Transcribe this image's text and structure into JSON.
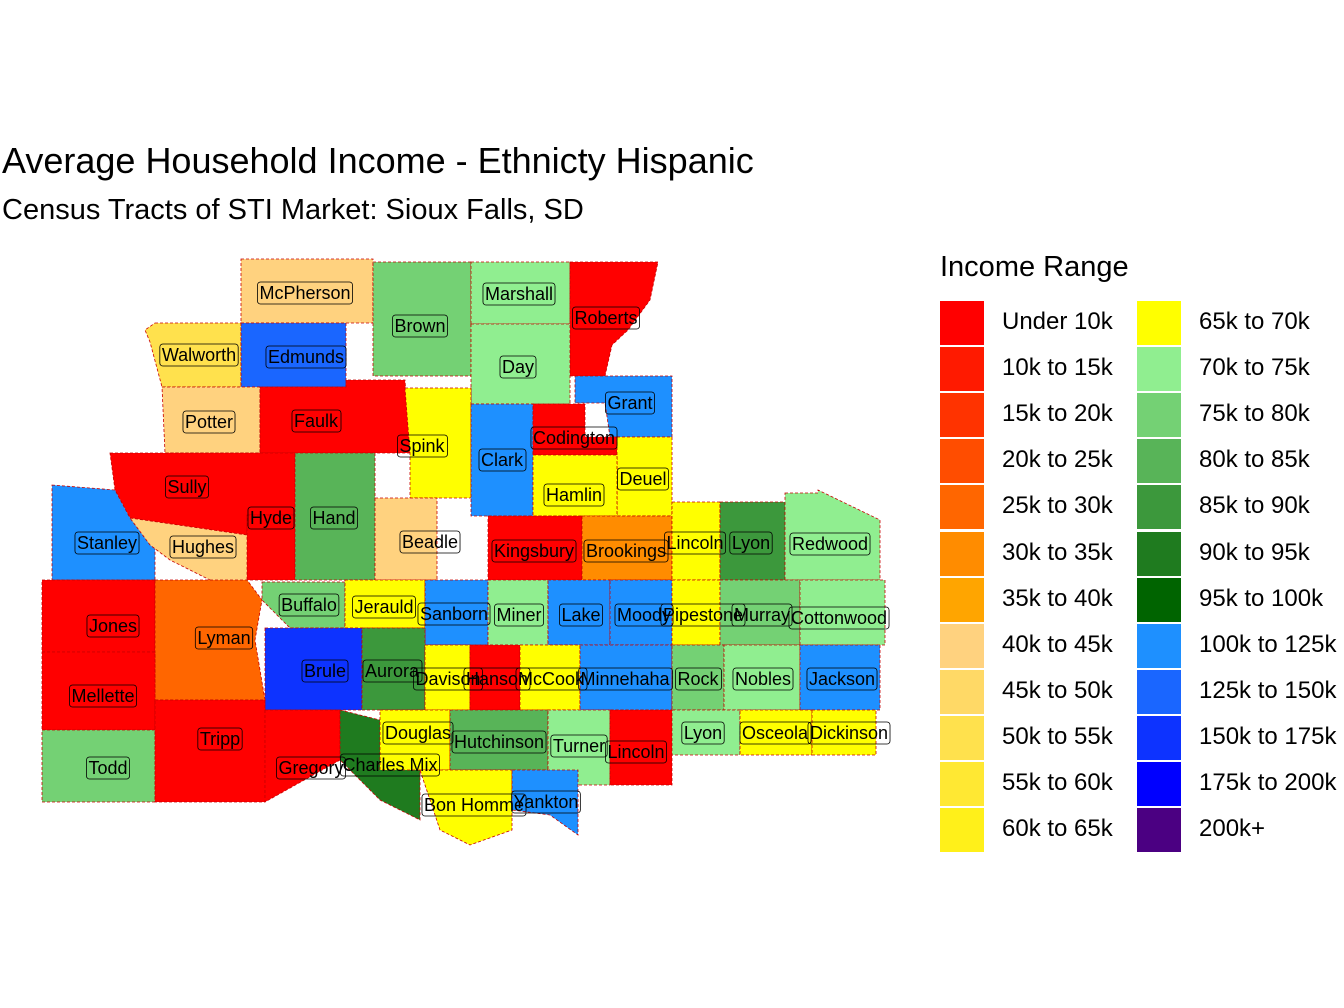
{
  "title": "Average Household Income - Ethnicty Hispanic",
  "subtitle": "Census Tracts of STI Market: Sioux Falls, SD",
  "legend": {
    "title": "Income Range",
    "items": [
      {
        "label": "Under 10k",
        "color": "#FF0000"
      },
      {
        "label": "10k to 15k",
        "color": "#FF1A00"
      },
      {
        "label": "15k to 20k",
        "color": "#FF3300"
      },
      {
        "label": "20k to 25k",
        "color": "#FF4D00"
      },
      {
        "label": "25k to 30k",
        "color": "#FF6600"
      },
      {
        "label": "30k to 35k",
        "color": "#FF8C00"
      },
      {
        "label": "35k to 40k",
        "color": "#FFA500"
      },
      {
        "label": "40k to 45k",
        "color": "#FFD27F"
      },
      {
        "label": "45k to 50k",
        "color": "#FFD966"
      },
      {
        "label": "50k to 55k",
        "color": "#FFE14D"
      },
      {
        "label": "55k to 60k",
        "color": "#FFE833"
      },
      {
        "label": "60k to 65k",
        "color": "#FFF01A"
      },
      {
        "label": "65k to 70k",
        "color": "#FFFF00"
      },
      {
        "label": "70k to 75k",
        "color": "#90EE90"
      },
      {
        "label": "75k to 80k",
        "color": "#74D174"
      },
      {
        "label": "80k to 85k",
        "color": "#58B458"
      },
      {
        "label": "85k to 90k",
        "color": "#3C983C"
      },
      {
        "label": "90k to 95k",
        "color": "#1F7B1F"
      },
      {
        "label": "95k to 100k",
        "color": "#006400"
      },
      {
        "label": "100k to 125k",
        "color": "#1E90FF"
      },
      {
        "label": "125k to 150k",
        "color": "#1A66FF"
      },
      {
        "label": "150k to 175k",
        "color": "#0D33FF"
      },
      {
        "label": "175k to 200k",
        "color": "#0000FF"
      },
      {
        "label": "200k+",
        "color": "#4B0082"
      }
    ]
  },
  "counties": [
    {
      "name": "McPherson",
      "income": "40k to 45k",
      "color": "#FFD27F"
    },
    {
      "name": "Brown",
      "income": "75k to 80k",
      "color": "#74D174"
    },
    {
      "name": "Marshall",
      "income": "70k to 75k",
      "color": "#90EE90"
    },
    {
      "name": "Roberts",
      "income": "Under 10k",
      "color": "#FF0000"
    },
    {
      "name": "Walworth",
      "income": "50k to 55k",
      "color": "#FFE14D"
    },
    {
      "name": "Edmunds",
      "income": "125k to 150k",
      "color": "#1A66FF"
    },
    {
      "name": "Day",
      "income": "70k to 75k",
      "color": "#90EE90"
    },
    {
      "name": "Grant",
      "income": "100k to 125k",
      "color": "#1E90FF"
    },
    {
      "name": "Potter",
      "income": "40k to 45k",
      "color": "#FFD27F"
    },
    {
      "name": "Faulk",
      "income": "Under 10k",
      "color": "#FF0000"
    },
    {
      "name": "Spink",
      "income": "65k to 70k",
      "color": "#FFFF00"
    },
    {
      "name": "Clark",
      "income": "100k to 125k",
      "color": "#1E90FF"
    },
    {
      "name": "Codington",
      "income": "Under 10k",
      "color": "#FF0000"
    },
    {
      "name": "Deuel",
      "income": "65k to 70k",
      "color": "#FFFF00"
    },
    {
      "name": "Hamlin",
      "income": "65k to 70k",
      "color": "#FFFF00"
    },
    {
      "name": "Sully",
      "income": "Under 10k",
      "color": "#FF0000"
    },
    {
      "name": "Hyde",
      "income": "Under 10k",
      "color": "#FF0000"
    },
    {
      "name": "Hand",
      "income": "80k to 85k",
      "color": "#58B458"
    },
    {
      "name": "Stanley",
      "income": "100k to 125k",
      "color": "#1E90FF"
    },
    {
      "name": "Hughes",
      "income": "40k to 45k",
      "color": "#FFD27F"
    },
    {
      "name": "Beadle",
      "income": "40k to 45k",
      "color": "#FFD27F"
    },
    {
      "name": "Kingsbury",
      "income": "Under 10k",
      "color": "#FF0000"
    },
    {
      "name": "Brookings",
      "income": "30k to 35k",
      "color": "#FF8C00"
    },
    {
      "name": "Lincoln",
      "income": "65k to 70k",
      "color": "#FFFF00"
    },
    {
      "name": "Lyon",
      "income": "85k to 90k",
      "color": "#3C983C"
    },
    {
      "name": "Redwood",
      "income": "70k to 75k",
      "color": "#90EE90"
    },
    {
      "name": "Jones",
      "income": "Under 10k",
      "color": "#FF0000"
    },
    {
      "name": "Lyman",
      "income": "25k to 30k",
      "color": "#FF6600"
    },
    {
      "name": "Buffalo",
      "income": "75k to 80k",
      "color": "#74D174"
    },
    {
      "name": "Jerauld",
      "income": "65k to 70k",
      "color": "#FFFF00"
    },
    {
      "name": "Sanborn",
      "income": "100k to 125k",
      "color": "#1E90FF"
    },
    {
      "name": "Miner",
      "income": "70k to 75k",
      "color": "#90EE90"
    },
    {
      "name": "Lake",
      "income": "100k to 125k",
      "color": "#1E90FF"
    },
    {
      "name": "Moody",
      "income": "100k to 125k",
      "color": "#1E90FF"
    },
    {
      "name": "Pipestone",
      "income": "65k to 70k",
      "color": "#FFFF00"
    },
    {
      "name": "Murray",
      "income": "75k to 80k",
      "color": "#74D174"
    },
    {
      "name": "Cottonwood",
      "income": "70k to 75k",
      "color": "#90EE90"
    },
    {
      "name": "Mellette",
      "income": "Under 10k",
      "color": "#FF0000"
    },
    {
      "name": "Brule",
      "income": "150k to 175k",
      "color": "#0D33FF"
    },
    {
      "name": "Aurora",
      "income": "85k to 90k",
      "color": "#3C983C"
    },
    {
      "name": "Davison",
      "income": "65k to 70k",
      "color": "#FFFF00"
    },
    {
      "name": "Hanson",
      "income": "Under 10k",
      "color": "#FF0000"
    },
    {
      "name": "McCook",
      "income": "65k to 70k",
      "color": "#FFFF00"
    },
    {
      "name": "Minnehaha",
      "income": "100k to 125k",
      "color": "#1E90FF"
    },
    {
      "name": "Rock",
      "income": "75k to 80k",
      "color": "#74D174"
    },
    {
      "name": "Nobles",
      "income": "70k to 75k",
      "color": "#90EE90"
    },
    {
      "name": "Jackson",
      "income": "100k to 125k",
      "color": "#1E90FF"
    },
    {
      "name": "Todd",
      "income": "75k to 80k",
      "color": "#74D174"
    },
    {
      "name": "Tripp",
      "income": "Under 10k",
      "color": "#FF0000"
    },
    {
      "name": "Gregory",
      "income": "Under 10k",
      "color": "#FF0000"
    },
    {
      "name": "Charles Mix",
      "income": "90k to 95k",
      "color": "#1F7B1F"
    },
    {
      "name": "Douglas",
      "income": "65k to 70k",
      "color": "#FFFF00"
    },
    {
      "name": "Hutchinson",
      "income": "80k to 85k",
      "color": "#58B458"
    },
    {
      "name": "Turner",
      "income": "70k to 75k",
      "color": "#90EE90"
    },
    {
      "name": "Lincoln",
      "income": "Under 10k",
      "color": "#FF0000"
    },
    {
      "name": "Lyon",
      "income": "70k to 75k",
      "color": "#90EE90"
    },
    {
      "name": "Osceola",
      "income": "65k to 70k",
      "color": "#FFFF00"
    },
    {
      "name": "Dickinson",
      "income": "65k to 70k",
      "color": "#FFFF00"
    },
    {
      "name": "Bon Homme",
      "income": "65k to 70k",
      "color": "#FFFF00"
    },
    {
      "name": "Yankton",
      "income": "100k to 125k",
      "color": "#1E90FF"
    }
  ]
}
